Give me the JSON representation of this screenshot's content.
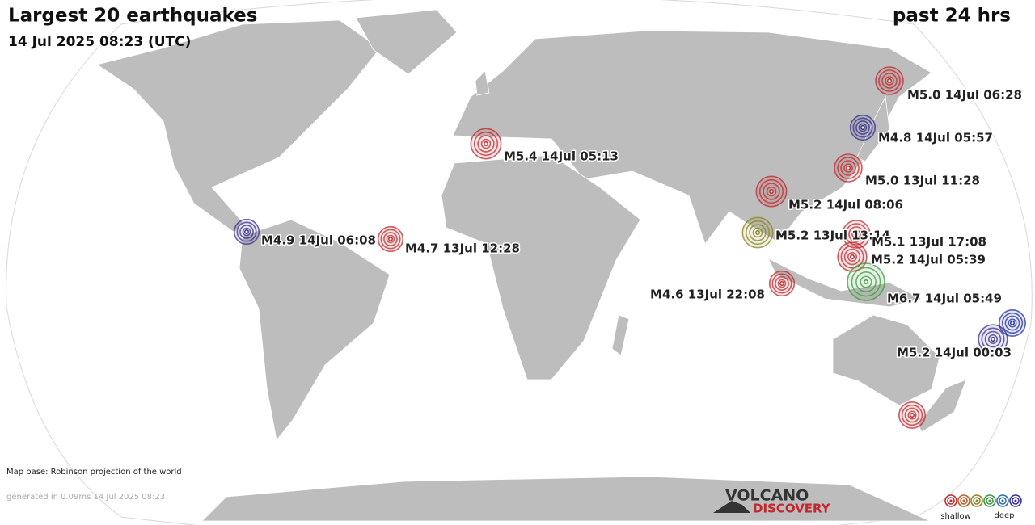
{
  "header": {
    "title": "Largest 20 earthquakes",
    "subtitle": "14 Jul 2025 08:23 (UTC)",
    "period": "past 24 hrs"
  },
  "quakes": [
    {
      "label": "M5.0 14Jul 06:28",
      "color": "#c0282d"
    },
    {
      "label": "M4.8 14Jul 05:57",
      "color": "#3a2f8f"
    },
    {
      "label": "M5.4 14Jul 05:13",
      "color": "#c0282d"
    },
    {
      "label": "M5.0 13Jul 11:28",
      "color": "#c0282d"
    },
    {
      "label": "M5.2 14Jul 08:06",
      "color": "#c0282d"
    },
    {
      "label": "M5.2 13Jul 13:14",
      "color": "#8a8320"
    },
    {
      "label": "M4.9 14Jul 06:08",
      "color": "#3a2f8f"
    },
    {
      "label": "M4.7 13Jul 12:28",
      "color": "#c0282d"
    },
    {
      "label": "M5.1 13Jul 17:08",
      "color": "#c0282d"
    },
    {
      "label": "M5.2 14Jul 05:39",
      "color": "#c0282d"
    },
    {
      "label": "M4.6 13Jul 22:08",
      "color": "#c0282d"
    },
    {
      "label": "M6.7 14Jul 05:49",
      "color": "#3f9a3f"
    },
    {
      "label": "M5.2 14Jul 00:03",
      "color": "#3a2f8f"
    },
    {
      "color": "#2030a0"
    },
    {
      "color": "#c0282d"
    }
  ],
  "footer": {
    "map_base": "Map base: Robinson projection of the world",
    "generated": "generated in 0.09ms 14 Jul 2025 08:23"
  },
  "logo": {
    "top": "VOLCANO",
    "bottom": "DISCOVERY"
  },
  "legend": {
    "shallow": "shallow",
    "deep": "deep",
    "colors": [
      "#c0282d",
      "#c05a28",
      "#8a8320",
      "#3f9a3f",
      "#2d6fb0",
      "#3a2f8f"
    ]
  }
}
